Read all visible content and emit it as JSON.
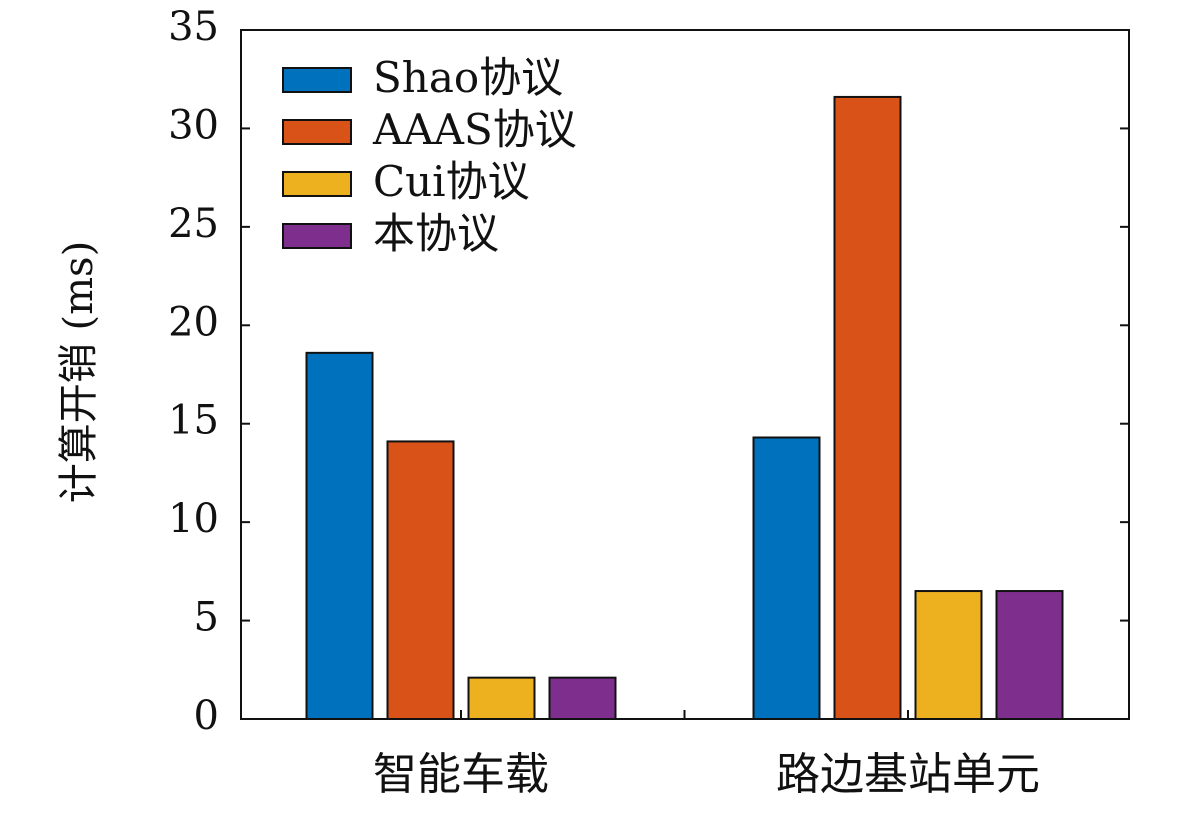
{
  "chart_data": {
    "type": "bar",
    "title": "",
    "xlabel": "",
    "ylabel": "计算开销 (ms)",
    "categories": [
      "智能车载",
      "路边基站单元"
    ],
    "series": [
      {
        "name": "Shao协议",
        "color": "#0072BD",
        "values": [
          18.6,
          14.3
        ]
      },
      {
        "name": "AAAS协议",
        "color": "#D95319",
        "values": [
          14.1,
          31.6
        ]
      },
      {
        "name": "Cui协议",
        "color": "#EDB120",
        "values": [
          2.1,
          6.5
        ]
      },
      {
        "name": "本协议",
        "color": "#7E2F8E",
        "values": [
          2.1,
          6.5
        ]
      }
    ],
    "ylim": [
      0,
      35
    ],
    "yticks": [
      "0",
      "5",
      "10",
      "15",
      "20",
      "25",
      "30",
      "35"
    ],
    "grid": false,
    "legend_position": "top-left"
  }
}
